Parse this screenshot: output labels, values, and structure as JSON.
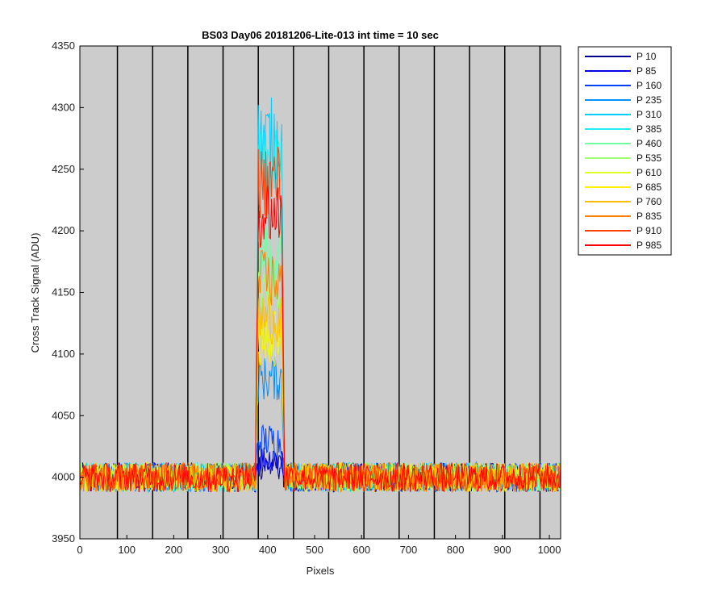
{
  "chart_data": {
    "type": "line",
    "title": "BS03 Day06 20181206-Lite-013 int time = 10 sec",
    "xlabel": "Pixels",
    "ylabel": "Cross Track Signal (ADU)",
    "xlim": [
      0,
      1024
    ],
    "ylim": [
      3950,
      4350
    ],
    "xticks": [
      0,
      100,
      200,
      300,
      400,
      500,
      600,
      700,
      800,
      900,
      1000
    ],
    "yticks": [
      3950,
      4000,
      4050,
      4100,
      4150,
      4200,
      4250,
      4300,
      4350
    ],
    "vertical_lines_x": [
      80,
      155,
      230,
      305,
      380,
      455,
      530,
      605,
      680,
      755,
      830,
      905,
      980
    ],
    "background": "#cccccc",
    "legend_position": "outside-right",
    "peak_x_range": [
      374,
      436
    ],
    "baseline": 4000,
    "noise_amplitude": 12,
    "series": [
      {
        "name": "P 10",
        "color": "#00008f",
        "peak": 4010
      },
      {
        "name": "P 85",
        "color": "#0000ef",
        "peak": 4015
      },
      {
        "name": "P 160",
        "color": "#0040ff",
        "peak": 4030
      },
      {
        "name": "P 235",
        "color": "#0090ff",
        "peak": 4080
      },
      {
        "name": "P 310",
        "color": "#00cfff",
        "peak": 4275
      },
      {
        "name": "P 385",
        "color": "#20efef",
        "peak": 4250
      },
      {
        "name": "P 460",
        "color": "#70ffa0",
        "peak": 4180
      },
      {
        "name": "P 535",
        "color": "#a0ff70",
        "peak": 4150
      },
      {
        "name": "P 610",
        "color": "#dfff20",
        "peak": 4120
      },
      {
        "name": "P 685",
        "color": "#ffef00",
        "peak": 4110
      },
      {
        "name": "P 760",
        "color": "#ffbf00",
        "peak": 4130
      },
      {
        "name": "P 835",
        "color": "#ff8000",
        "peak": 4160
      },
      {
        "name": "P 910",
        "color": "#ff4000",
        "peak": 4240
      },
      {
        "name": "P 985",
        "color": "#ff0000",
        "peak": 4215
      }
    ]
  }
}
